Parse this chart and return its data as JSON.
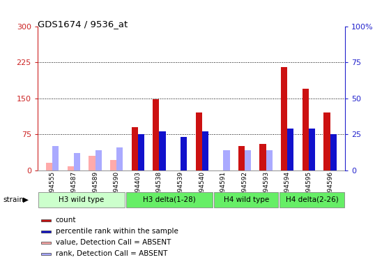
{
  "title": "GDS1674 / 9536_at",
  "samples": [
    "GSM94555",
    "GSM94587",
    "GSM94589",
    "GSM94590",
    "GSM94403",
    "GSM94538",
    "GSM94539",
    "GSM94540",
    "GSM94591",
    "GSM94592",
    "GSM94593",
    "GSM94594",
    "GSM94595",
    "GSM94596"
  ],
  "count_values": [
    null,
    null,
    null,
    null,
    90,
    148,
    null,
    120,
    null,
    50,
    55,
    215,
    170,
    120
  ],
  "rank_values": [
    null,
    null,
    null,
    null,
    25,
    27,
    23,
    27,
    null,
    null,
    null,
    29,
    29,
    25
  ],
  "absent_count": [
    15,
    8,
    30,
    22,
    null,
    null,
    null,
    null,
    null,
    null,
    null,
    null,
    null,
    null
  ],
  "absent_rank": [
    17,
    12,
    14,
    16,
    null,
    null,
    null,
    null,
    14,
    14,
    14,
    null,
    null,
    null
  ],
  "left_yticks": [
    0,
    75,
    150,
    225,
    300
  ],
  "right_yticks": [
    0,
    25,
    50,
    75,
    100
  ],
  "ylim_left": [
    0,
    300
  ],
  "ylim_right": [
    0,
    100
  ],
  "bar_width": 0.3,
  "count_color": "#cc1111",
  "rank_color": "#1111cc",
  "absent_count_color": "#ffaaaa",
  "absent_rank_color": "#aaaaff",
  "bg_color": "#ffffff",
  "left_axis_color": "#cc2222",
  "right_axis_color": "#2222cc",
  "dotted_lines": [
    75,
    150,
    225
  ],
  "group_defs": [
    [
      0,
      4,
      "H3 wild type"
    ],
    [
      4,
      8,
      "H3 delta(1-28)"
    ],
    [
      8,
      11,
      "H4 wild type"
    ],
    [
      11,
      14,
      "H4 delta(2-26)"
    ]
  ],
  "group_colors": [
    "#ccffcc",
    "#66ee66",
    "#66ee66",
    "#66ee66"
  ],
  "legend_items": [
    {
      "label": "count",
      "color": "#cc1111"
    },
    {
      "label": "percentile rank within the sample",
      "color": "#1111cc"
    },
    {
      "label": "value, Detection Call = ABSENT",
      "color": "#ffaaaa"
    },
    {
      "label": "rank, Detection Call = ABSENT",
      "color": "#aaaaff"
    }
  ]
}
